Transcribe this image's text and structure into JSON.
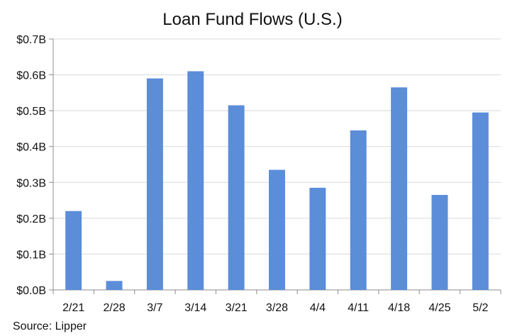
{
  "chart_data": {
    "type": "bar",
    "title": "Loan Fund Flows (U.S.)",
    "source": "Source: Lipper",
    "xlabel": "",
    "ylabel": "",
    "categories": [
      "2/21",
      "2/28",
      "3/7",
      "3/14",
      "3/21",
      "3/28",
      "4/4",
      "4/11",
      "4/18",
      "4/25",
      "5/2"
    ],
    "values": [
      0.22,
      0.025,
      0.59,
      0.61,
      0.515,
      0.335,
      0.285,
      0.445,
      0.565,
      0.265,
      0.495
    ],
    "ylim": [
      0,
      0.7
    ],
    "yticks": [
      0,
      0.1,
      0.2,
      0.3,
      0.4,
      0.5,
      0.6,
      0.7
    ],
    "ytick_labels": [
      "$0.0B",
      "$0.1B",
      "$0.2B",
      "$0.3B",
      "$0.4B",
      "$0.5B",
      "$0.6B",
      "$0.7B"
    ],
    "grid": true,
    "bar_color": "#5B8DD9",
    "grid_color": "#D9D9D9",
    "axis_color": "#8C8C8C"
  }
}
